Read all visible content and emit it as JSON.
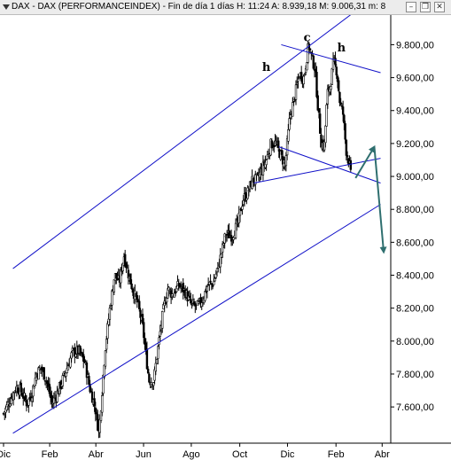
{
  "window": {
    "title": "DAX - DAX (PERFORMANCEINDEX) - Fin de día 1 días  H: 11:24  A: 8.939,18  M: 9.006,31  m: 8",
    "buttons": {
      "minimize": "–",
      "restore": "❐",
      "close": "✕"
    }
  },
  "chart_data": {
    "type": "candlestick",
    "ylim": [
      7380,
      9980
    ],
    "yticks": [
      {
        "value": 9800,
        "label": "9.800,00"
      },
      {
        "value": 9600,
        "label": "9.600,00"
      },
      {
        "value": 9400,
        "label": "9.400,00"
      },
      {
        "value": 9200,
        "label": "9.200,00"
      },
      {
        "value": 9000,
        "label": "9.000,00"
      },
      {
        "value": 8800,
        "label": "8.800,00"
      },
      {
        "value": 8600,
        "label": "8.600,00"
      },
      {
        "value": 8400,
        "label": "8.400,00"
      },
      {
        "value": 8200,
        "label": "8.200,00"
      },
      {
        "value": 8000,
        "label": "8.000,00"
      },
      {
        "value": 7800,
        "label": "7.800,00"
      },
      {
        "value": 7600,
        "label": "7.600,00"
      }
    ],
    "xticks": [
      {
        "day": 0,
        "label": "Dic"
      },
      {
        "day": 59,
        "label": "Feb"
      },
      {
        "day": 118,
        "label": "Abr"
      },
      {
        "day": 179,
        "label": "Jun"
      },
      {
        "day": 240,
        "label": "Ago"
      },
      {
        "day": 302,
        "label": "Oct"
      },
      {
        "day": 363,
        "label": "Dic"
      },
      {
        "day": 425,
        "label": "Feb"
      },
      {
        "day": 484,
        "label": "Abr"
      }
    ],
    "series": [
      {
        "values": [
          [
            0,
            7560
          ],
          [
            8,
            7640
          ],
          [
            16,
            7720
          ],
          [
            22,
            7700
          ],
          [
            30,
            7620
          ],
          [
            36,
            7680
          ],
          [
            42,
            7800
          ],
          [
            48,
            7840
          ],
          [
            55,
            7760
          ],
          [
            62,
            7620
          ],
          [
            70,
            7700
          ],
          [
            80,
            7820
          ],
          [
            88,
            7930
          ],
          [
            96,
            7940
          ],
          [
            104,
            7870
          ],
          [
            110,
            7720
          ],
          [
            117,
            7600
          ],
          [
            122,
            7440
          ],
          [
            130,
            7960
          ],
          [
            136,
            8200
          ],
          [
            142,
            8400
          ],
          [
            148,
            8360
          ],
          [
            154,
            8520
          ],
          [
            160,
            8400
          ],
          [
            166,
            8300
          ],
          [
            172,
            8220
          ],
          [
            178,
            8080
          ],
          [
            186,
            7760
          ],
          [
            192,
            7760
          ],
          [
            198,
            7980
          ],
          [
            204,
            8180
          ],
          [
            210,
            8320
          ],
          [
            216,
            8280
          ],
          [
            224,
            8340
          ],
          [
            232,
            8300
          ],
          [
            240,
            8220
          ],
          [
            248,
            8210
          ],
          [
            255,
            8260
          ],
          [
            261,
            8340
          ],
          [
            268,
            8350
          ],
          [
            276,
            8480
          ],
          [
            284,
            8650
          ],
          [
            292,
            8640
          ],
          [
            300,
            8720
          ],
          [
            306,
            8860
          ],
          [
            312,
            8900
          ],
          [
            318,
            8980
          ],
          [
            324,
            8980
          ],
          [
            330,
            9040
          ],
          [
            336,
            9100
          ],
          [
            342,
            9200
          ],
          [
            348,
            9200
          ],
          [
            354,
            9130
          ],
          [
            360,
            9070
          ],
          [
            366,
            9360
          ],
          [
            372,
            9480
          ],
          [
            378,
            9620
          ],
          [
            384,
            9600
          ],
          [
            390,
            9800
          ],
          [
            394,
            9720
          ],
          [
            398,
            9660
          ],
          [
            402,
            9420
          ],
          [
            406,
            9210
          ],
          [
            410,
            9180
          ],
          [
            414,
            9500
          ],
          [
            418,
            9560
          ],
          [
            422,
            9700
          ],
          [
            426,
            9640
          ],
          [
            430,
            9450
          ],
          [
            434,
            9380
          ],
          [
            438,
            9160
          ],
          [
            442,
            9080
          ],
          [
            445,
            8960
          ]
        ]
      }
    ],
    "trendlines": [
      {
        "x1": 12,
        "y1": 8440,
        "x2": 446,
        "y2": 9990
      },
      {
        "x1": 12,
        "y1": 7440,
        "x2": 482,
        "y2": 8830
      },
      {
        "x1": 355,
        "y1": 9800,
        "x2": 482,
        "y2": 9630
      },
      {
        "x1": 320,
        "y1": 8960,
        "x2": 482,
        "y2": 9110
      },
      {
        "x1": 352,
        "y1": 9180,
        "x2": 482,
        "y2": 8960
      }
    ],
    "projection_arrows": [
      {
        "from": [
          450,
          8990
        ],
        "to": [
          474,
          9180
        ]
      },
      {
        "from": [
          474,
          9180
        ],
        "to": [
          486,
          8540
        ]
      }
    ],
    "annotations": [
      {
        "text": "h",
        "day": 336,
        "value": 9640
      },
      {
        "text": "c",
        "day": 388,
        "value": 9820
      },
      {
        "text": "h",
        "day": 432,
        "value": 9760
      }
    ],
    "xlim": [
      0,
      495
    ]
  }
}
